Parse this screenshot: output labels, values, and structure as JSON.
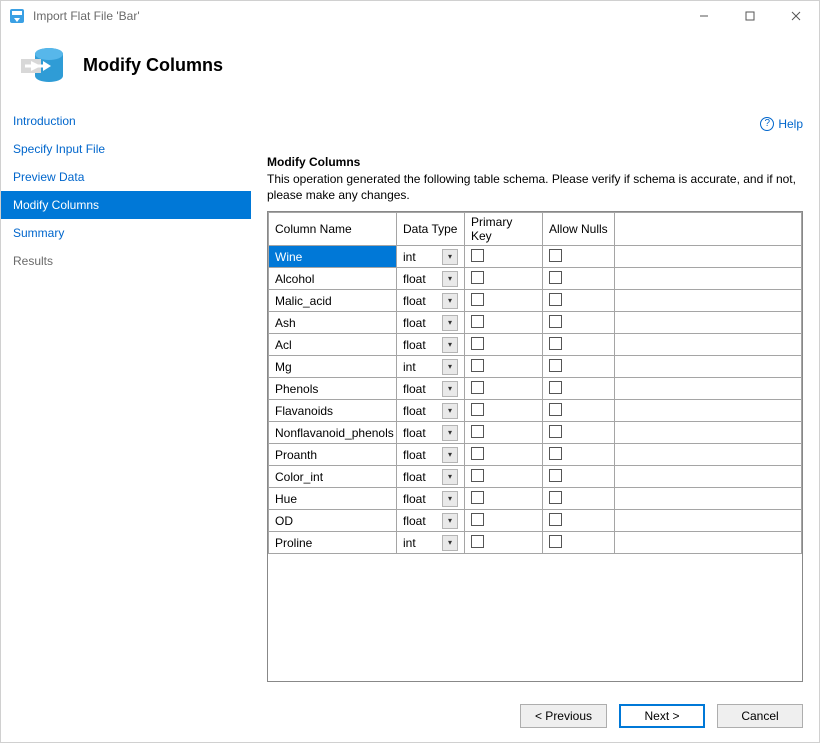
{
  "window": {
    "title": "Import Flat File 'Bar'"
  },
  "header": {
    "title": "Modify Columns"
  },
  "help": {
    "label": "Help"
  },
  "sidebar": {
    "items": [
      {
        "label": "Introduction",
        "state": "link"
      },
      {
        "label": "Specify Input File",
        "state": "link"
      },
      {
        "label": "Preview Data",
        "state": "link"
      },
      {
        "label": "Modify Columns",
        "state": "active"
      },
      {
        "label": "Summary",
        "state": "link"
      },
      {
        "label": "Results",
        "state": "muted"
      }
    ]
  },
  "section": {
    "title": "Modify Columns",
    "description": "This operation generated the following table schema. Please verify if schema is accurate, and if not, please make any changes."
  },
  "grid": {
    "headers": {
      "col_name": "Column Name",
      "data_type": "Data Type",
      "primary_key": "Primary Key",
      "allow_nulls": "Allow Nulls"
    },
    "rows": [
      {
        "name": "Wine",
        "type": "int",
        "pk": false,
        "nulls": false,
        "selected": true
      },
      {
        "name": "Alcohol",
        "type": "float",
        "pk": false,
        "nulls": false,
        "selected": false
      },
      {
        "name": "Malic_acid",
        "type": "float",
        "pk": false,
        "nulls": false,
        "selected": false
      },
      {
        "name": "Ash",
        "type": "float",
        "pk": false,
        "nulls": false,
        "selected": false
      },
      {
        "name": "Acl",
        "type": "float",
        "pk": false,
        "nulls": false,
        "selected": false
      },
      {
        "name": "Mg",
        "type": "int",
        "pk": false,
        "nulls": false,
        "selected": false
      },
      {
        "name": "Phenols",
        "type": "float",
        "pk": false,
        "nulls": false,
        "selected": false
      },
      {
        "name": "Flavanoids",
        "type": "float",
        "pk": false,
        "nulls": false,
        "selected": false
      },
      {
        "name": "Nonflavanoid_phenols",
        "type": "float",
        "pk": false,
        "nulls": false,
        "selected": false
      },
      {
        "name": "Proanth",
        "type": "float",
        "pk": false,
        "nulls": false,
        "selected": false
      },
      {
        "name": "Color_int",
        "type": "float",
        "pk": false,
        "nulls": false,
        "selected": false
      },
      {
        "name": "Hue",
        "type": "float",
        "pk": false,
        "nulls": false,
        "selected": false
      },
      {
        "name": "OD",
        "type": "float",
        "pk": false,
        "nulls": false,
        "selected": false
      },
      {
        "name": "Proline",
        "type": "int",
        "pk": false,
        "nulls": false,
        "selected": false
      }
    ]
  },
  "footer": {
    "previous": "< Previous",
    "next": "Next >",
    "cancel": "Cancel"
  },
  "colors": {
    "accent": "#0078d7",
    "link": "#0066cc",
    "muted_text": "#6a6a6a",
    "border": "#a5a5a5"
  }
}
